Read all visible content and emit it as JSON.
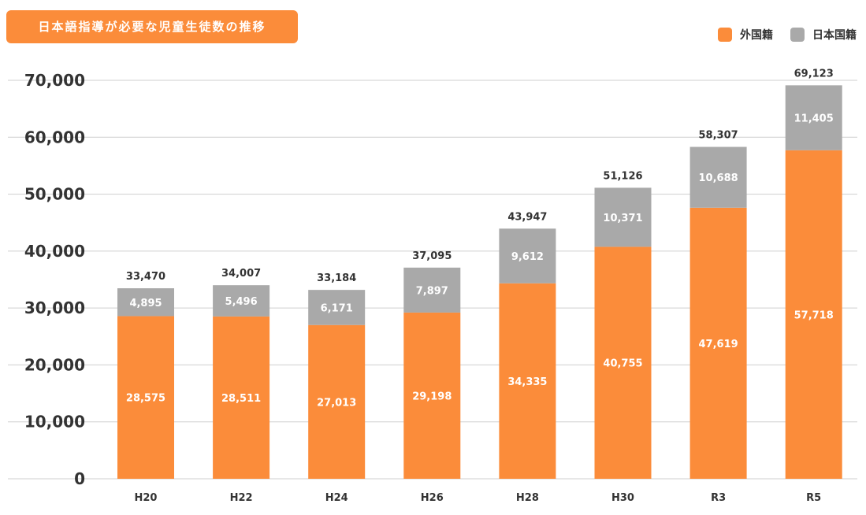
{
  "chart_data": {
    "type": "bar",
    "stacked": true,
    "title": "日本語指導が必要な児童生徒数の推移",
    "categories": [
      "H20",
      "H22",
      "H24",
      "H26",
      "H28",
      "H30",
      "R3",
      "R5"
    ],
    "series": [
      {
        "name": "外国籍",
        "color": "#fb8c3a",
        "values": [
          28575,
          28511,
          27013,
          29198,
          34335,
          40755,
          47619,
          57718
        ],
        "labels": [
          "28,575",
          "28,511",
          "27,013",
          "29,198",
          "34,335",
          "40,755",
          "47,619",
          "57,718"
        ]
      },
      {
        "name": "日本国籍",
        "color": "#a9a9a9",
        "values": [
          4895,
          5496,
          6171,
          7897,
          9612,
          10371,
          10688,
          11405
        ],
        "labels": [
          "4,895",
          "5,496",
          "6,171",
          "7,897",
          "9,612",
          "10,371",
          "10,688",
          "11,405"
        ]
      }
    ],
    "totals": [
      33470,
      34007,
      33184,
      37095,
      43947,
      51126,
      58307,
      69123
    ],
    "total_labels": [
      "33,470",
      "34,007",
      "33,184",
      "37,095",
      "43,947",
      "51,126",
      "58,307",
      "69,123"
    ],
    "ylim": [
      0,
      70000
    ],
    "yticks": [
      0,
      10000,
      20000,
      30000,
      40000,
      50000,
      60000,
      70000
    ],
    "ytick_labels": [
      "0",
      "10,000",
      "20,000",
      "30,000",
      "40,000",
      "50,000",
      "60,000",
      "70,000"
    ],
    "xlabel": "",
    "ylabel": "",
    "grid": true,
    "legend_position": "top-right"
  }
}
